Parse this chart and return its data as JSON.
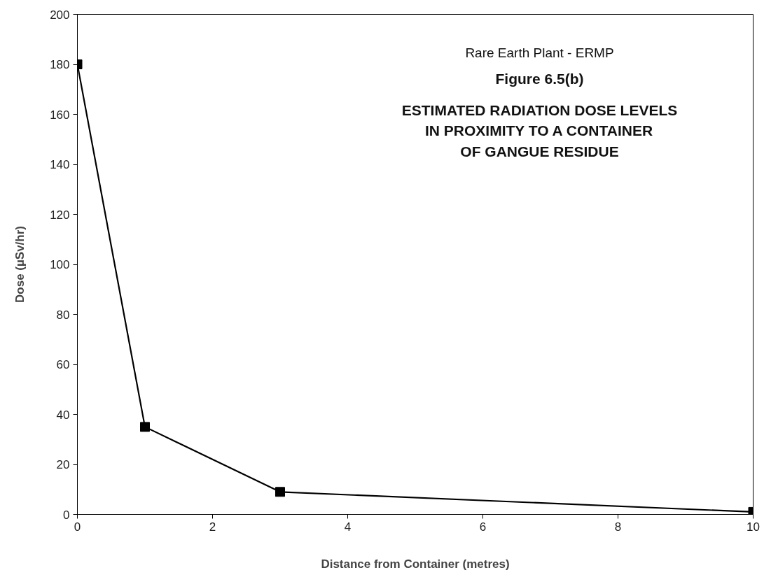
{
  "chart_data": {
    "type": "line",
    "title": "Rare Earth Plant - ERMP",
    "subtitle": "Figure 6.5(b)",
    "annotations": [
      "ESTIMATED RADIATION DOSE LEVELS\nIN PROXIMITY TO A CONTAINER\nOF GANGUE RESIDUE"
    ],
    "xlabel": "Distance from Container (metres)",
    "ylabel": "Dose (µSv/hr)",
    "x": [
      0,
      1,
      3,
      10
    ],
    "series": [
      {
        "color": "#000000",
        "values": [
          180,
          35,
          9,
          1
        ]
      }
    ],
    "xlim": [
      0,
      10
    ],
    "xticks": [
      0,
      2,
      4,
      6,
      8,
      10
    ],
    "ylim": [
      0,
      200
    ],
    "yticks": [
      0,
      20,
      40,
      60,
      80,
      100,
      120,
      140,
      160,
      180,
      200
    ],
    "marker": "square",
    "line_style": "solid",
    "grid": false
  }
}
